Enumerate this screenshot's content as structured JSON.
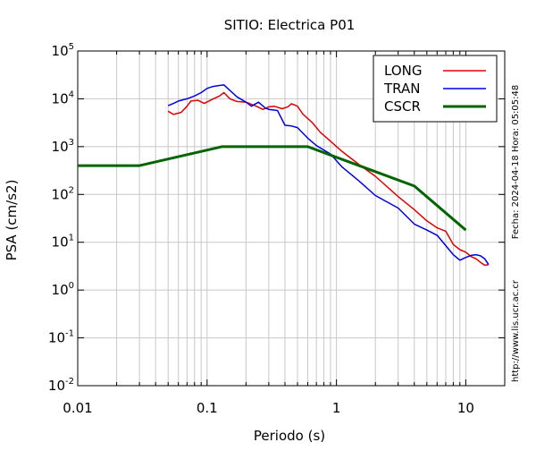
{
  "chart_data": {
    "type": "line",
    "title": "SITIO: Electrica P01",
    "xlabel": "Periodo (s)",
    "ylabel": "PSA (cm/s2)",
    "x_scale": "log",
    "y_scale": "log",
    "xlim": [
      0.01,
      20
    ],
    "ylim": [
      0.01,
      100000
    ],
    "grid": true,
    "legend_position": "top-right",
    "x_ticks": [
      {
        "value": 0.01,
        "label": "0.01"
      },
      {
        "value": 0.1,
        "label": "0.1"
      },
      {
        "value": 1,
        "label": "1"
      },
      {
        "value": 10,
        "label": "10"
      }
    ],
    "y_ticks": [
      {
        "value": 0.01,
        "base": "10",
        "exp": "-2"
      },
      {
        "value": 0.1,
        "base": "10",
        "exp": "-1"
      },
      {
        "value": 1,
        "base": "10",
        "exp": "0"
      },
      {
        "value": 10,
        "base": "10",
        "exp": "1"
      },
      {
        "value": 100,
        "base": "10",
        "exp": "2"
      },
      {
        "value": 1000,
        "base": "10",
        "exp": "3"
      },
      {
        "value": 10000,
        "base": "10",
        "exp": "4"
      },
      {
        "value": 100000,
        "base": "10",
        "exp": "5"
      }
    ],
    "series": [
      {
        "name": "LONG",
        "color": "#e00000",
        "points": [
          [
            0.05,
            5500
          ],
          [
            0.055,
            4700
          ],
          [
            0.063,
            5200
          ],
          [
            0.07,
            7000
          ],
          [
            0.075,
            9000
          ],
          [
            0.085,
            9300
          ],
          [
            0.095,
            8000
          ],
          [
            0.11,
            9800
          ],
          [
            0.125,
            11500
          ],
          [
            0.135,
            13500
          ],
          [
            0.15,
            10000
          ],
          [
            0.17,
            8800
          ],
          [
            0.2,
            8500
          ],
          [
            0.24,
            7000
          ],
          [
            0.27,
            6000
          ],
          [
            0.3,
            6800
          ],
          [
            0.33,
            7000
          ],
          [
            0.38,
            6200
          ],
          [
            0.42,
            6800
          ],
          [
            0.45,
            7900
          ],
          [
            0.5,
            7000
          ],
          [
            0.55,
            4800
          ],
          [
            0.65,
            3200
          ],
          [
            0.75,
            2000
          ],
          [
            0.9,
            1300
          ],
          [
            1.1,
            800
          ],
          [
            1.5,
            420
          ],
          [
            2,
            240
          ],
          [
            3,
            90
          ],
          [
            4,
            48
          ],
          [
            5,
            28
          ],
          [
            6,
            20
          ],
          [
            7,
            17
          ],
          [
            8,
            9
          ],
          [
            9,
            7
          ],
          [
            10,
            6.2
          ],
          [
            11,
            5
          ],
          [
            12,
            4.5
          ],
          [
            13,
            3.8
          ],
          [
            14,
            3.3
          ],
          [
            15,
            3.4
          ]
        ]
      },
      {
        "name": "TRAN",
        "color": "#0000e0",
        "points": [
          [
            0.05,
            7200
          ],
          [
            0.055,
            8000
          ],
          [
            0.06,
            9000
          ],
          [
            0.07,
            10000
          ],
          [
            0.08,
            11500
          ],
          [
            0.09,
            13500
          ],
          [
            0.1,
            16500
          ],
          [
            0.11,
            18000
          ],
          [
            0.125,
            19000
          ],
          [
            0.135,
            19500
          ],
          [
            0.15,
            15000
          ],
          [
            0.17,
            11000
          ],
          [
            0.2,
            8500
          ],
          [
            0.22,
            7000
          ],
          [
            0.25,
            8500
          ],
          [
            0.28,
            6500
          ],
          [
            0.3,
            6000
          ],
          [
            0.35,
            5700
          ],
          [
            0.4,
            2800
          ],
          [
            0.45,
            2700
          ],
          [
            0.5,
            2500
          ],
          [
            0.6,
            1500
          ],
          [
            0.7,
            1050
          ],
          [
            0.9,
            700
          ],
          [
            1.1,
            380
          ],
          [
            1.5,
            190
          ],
          [
            2,
            95
          ],
          [
            3,
            52
          ],
          [
            4,
            24
          ],
          [
            5,
            18
          ],
          [
            6,
            14
          ],
          [
            7,
            8.5
          ],
          [
            8,
            5.5
          ],
          [
            9,
            4.2
          ],
          [
            10,
            4.8
          ],
          [
            11,
            5.3
          ],
          [
            12,
            5.5
          ],
          [
            13,
            5.2
          ],
          [
            14,
            4.5
          ],
          [
            15,
            3.4
          ]
        ]
      },
      {
        "name": "CSCR",
        "color": "#006400",
        "points": [
          [
            0.01,
            400
          ],
          [
            0.03,
            400
          ],
          [
            0.13,
            1000
          ],
          [
            0.6,
            1000
          ],
          [
            2,
            300
          ],
          [
            4,
            150
          ],
          [
            10,
            18
          ]
        ]
      }
    ]
  },
  "side_labels": {
    "date": "Fecha: 2024-04-18 Hora: 05:05:48",
    "url": "http://www.lis.ucr.ac.cr"
  }
}
